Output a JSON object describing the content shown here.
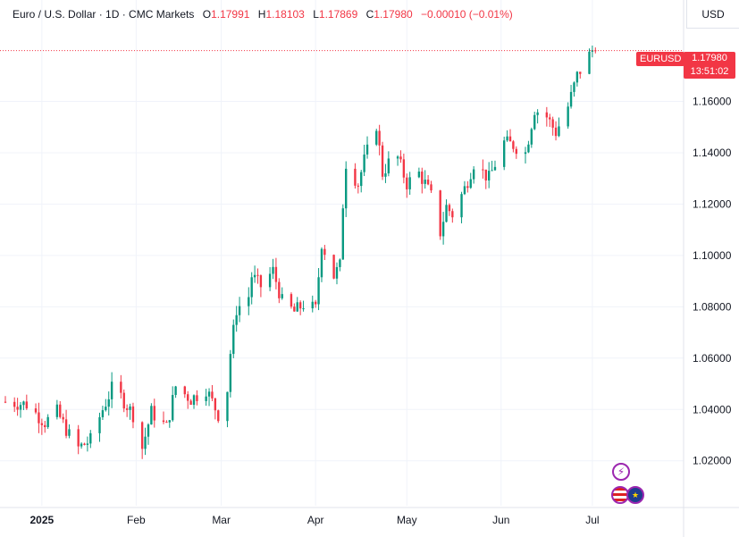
{
  "header": {
    "symbol_description": "Euro / U.S. Dollar · 1D · CMC Markets",
    "open_label": "O",
    "open_value": "1.17991",
    "high_label": "H",
    "high_value": "1.18103",
    "low_label": "L",
    "low_value": "1.17869",
    "close_label": "C",
    "close_value": "1.17980",
    "change": "−0.00010 (−0.01%)"
  },
  "price_axis": {
    "currency": "USD"
  },
  "last_price": {
    "symbol": "EURUSD",
    "value": "1.17980",
    "countdown": "13:51:02"
  },
  "colors": {
    "up": "#089981",
    "down": "#f23645",
    "grid": "#f0f3fa",
    "axis_text": "#131722",
    "marker": "#9c27b0"
  },
  "icons": [
    "lightning-icon",
    "us-flag-icon",
    "eu-flag-icon"
  ],
  "chart_data": {
    "type": "candlestick",
    "title": "Euro / U.S. Dollar · 1D · CMC Markets",
    "y_ticks": [
      "1.16000",
      "1.14000",
      "1.12000",
      "1.10000",
      "1.08000",
      "1.06000",
      "1.04000",
      "1.02000"
    ],
    "y_tick_values": [
      1.16,
      1.14,
      1.12,
      1.1,
      1.08,
      1.06,
      1.04,
      1.02
    ],
    "x_ticks": [
      "2025",
      "Feb",
      "Mar",
      "Apr",
      "May",
      "Jun",
      "Jul"
    ],
    "x_tick_dates": [
      "2025-01-01",
      "2025-02-01",
      "2025-03-01",
      "2025-04-01",
      "2025-05-01",
      "2025-06-01",
      "2025-07-01"
    ],
    "ylim": [
      1.0025,
      1.1995
    ],
    "date_range": [
      "2024-12-20",
      "2025-07-31"
    ],
    "close_path": [
      [
        "2024-12-20",
        1.043
      ],
      [
        "2024-12-27",
        1.042
      ],
      [
        "2025-01-02",
        1.035
      ],
      [
        "2025-01-06",
        1.039
      ],
      [
        "2025-01-10",
        1.03
      ],
      [
        "2025-01-13",
        1.025
      ],
      [
        "2025-01-17",
        1.028
      ],
      [
        "2025-01-21",
        1.04
      ],
      [
        "2025-01-24",
        1.048
      ],
      [
        "2025-01-27",
        1.045
      ],
      [
        "2025-01-31",
        1.038
      ],
      [
        "2025-02-03",
        1.025
      ],
      [
        "2025-02-06",
        1.039
      ],
      [
        "2025-02-11",
        1.033
      ],
      [
        "2025-02-14",
        1.049
      ],
      [
        "2025-02-19",
        1.044
      ],
      [
        "2025-02-24",
        1.048
      ],
      [
        "2025-02-28",
        1.038
      ],
      [
        "2025-03-03",
        1.048
      ],
      [
        "2025-03-04",
        1.062
      ],
      [
        "2025-03-06",
        1.079
      ],
      [
        "2025-03-10",
        1.084
      ],
      [
        "2025-03-11",
        1.092
      ],
      [
        "2025-03-14",
        1.088
      ],
      [
        "2025-03-18",
        1.094
      ],
      [
        "2025-03-21",
        1.082
      ],
      [
        "2025-03-25",
        1.078
      ],
      [
        "2025-03-28",
        1.081
      ],
      [
        "2025-04-01",
        1.079
      ],
      [
        "2025-04-03",
        1.105
      ],
      [
        "2025-04-07",
        1.092
      ],
      [
        "2025-04-09",
        1.096
      ],
      [
        "2025-04-10",
        1.12
      ],
      [
        "2025-04-11",
        1.136
      ],
      [
        "2025-04-15",
        1.128
      ],
      [
        "2025-04-17",
        1.137
      ],
      [
        "2025-04-21",
        1.151
      ],
      [
        "2025-04-23",
        1.132
      ],
      [
        "2025-04-25",
        1.136
      ],
      [
        "2025-04-28",
        1.138
      ],
      [
        "2025-05-01",
        1.128
      ],
      [
        "2025-05-05",
        1.132
      ],
      [
        "2025-05-07",
        1.128
      ],
      [
        "2025-05-09",
        1.123
      ],
      [
        "2025-05-12",
        1.109
      ],
      [
        "2025-05-14",
        1.119
      ],
      [
        "2025-05-16",
        1.116
      ],
      [
        "2025-05-20",
        1.126
      ],
      [
        "2025-05-23",
        1.136
      ],
      [
        "2025-05-28",
        1.13
      ],
      [
        "2025-06-02",
        1.144
      ],
      [
        "2025-06-05",
        1.143
      ],
      [
        "2025-06-09",
        1.14
      ],
      [
        "2025-06-12",
        1.157
      ],
      [
        "2025-06-16",
        1.154
      ],
      [
        "2025-06-19",
        1.148
      ],
      [
        "2025-06-23",
        1.158
      ],
      [
        "2025-06-26",
        1.17
      ],
      [
        "2025-06-30",
        1.178
      ],
      [
        "2025-07-01",
        1.18
      ],
      [
        "2025-07-02",
        1.1798
      ]
    ]
  }
}
